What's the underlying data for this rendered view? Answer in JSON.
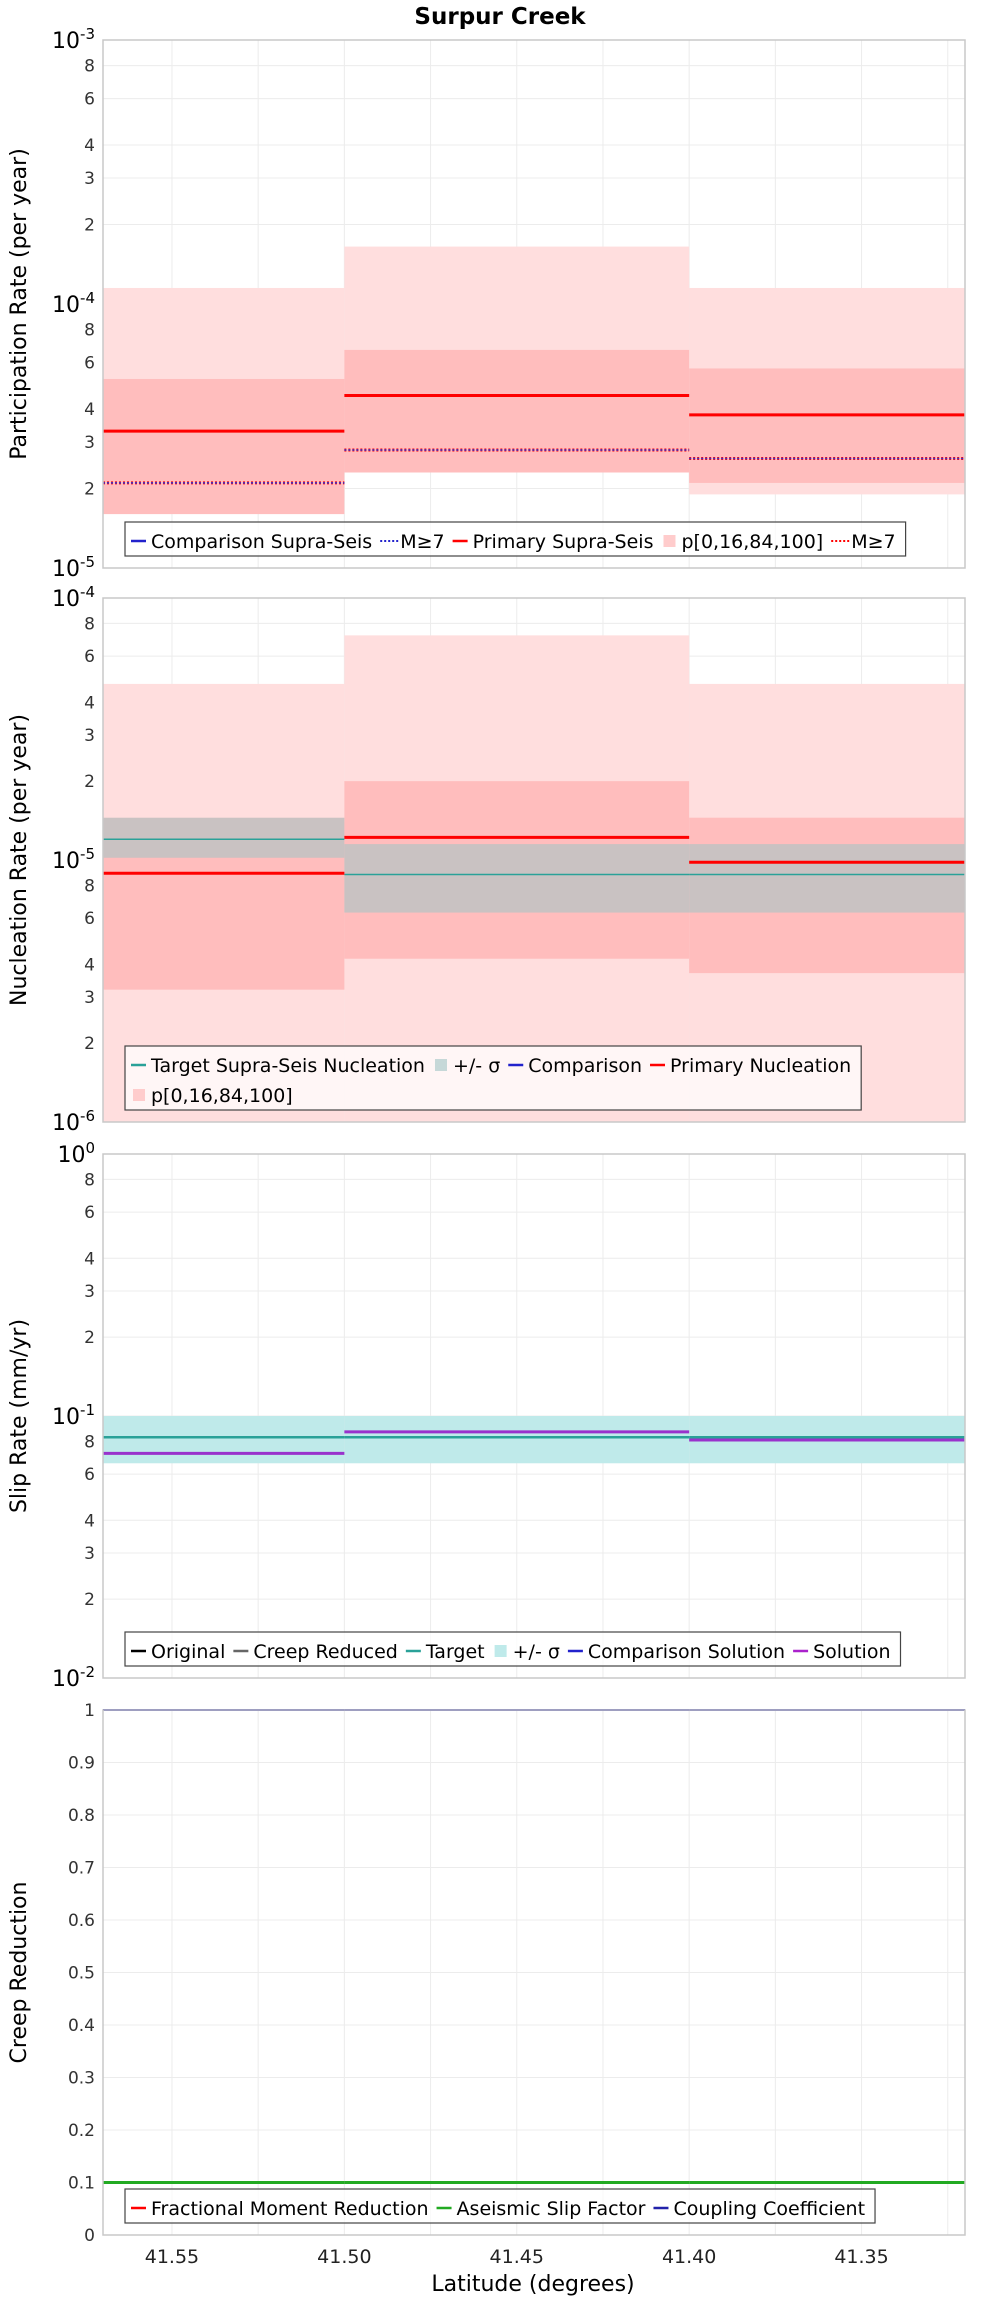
{
  "title": "Surpur Creek",
  "xlabel": "Latitude (degrees)",
  "x_ticks": [
    "41.55",
    "41.50",
    "41.45",
    "41.40",
    "41.35"
  ],
  "chart_data": [
    {
      "type": "line",
      "ylabel": "Participation Rate (per year)",
      "yscale": "log",
      "ylim": [
        1e-05,
        0.001
      ],
      "xlim": [
        41.57,
        41.32
      ],
      "x_bins": [
        [
          41.57,
          41.5
        ],
        [
          41.5,
          41.4
        ],
        [
          41.4,
          41.32
        ]
      ],
      "y_tick_labels": [
        {
          "v": 0.001,
          "base": "10",
          "exp": "-3"
        },
        {
          "v": 0.0008,
          "text": "8"
        },
        {
          "v": 0.0006,
          "text": "6"
        },
        {
          "v": 0.0004,
          "text": "4"
        },
        {
          "v": 0.0003,
          "text": "3"
        },
        {
          "v": 0.0002,
          "text": "2"
        },
        {
          "v": 0.0001,
          "base": "10",
          "exp": "-4"
        },
        {
          "v": 8e-05,
          "text": "8"
        },
        {
          "v": 6e-05,
          "text": "6"
        },
        {
          "v": 4e-05,
          "text": "4"
        },
        {
          "v": 3e-05,
          "text": "3"
        },
        {
          "v": 2e-05,
          "text": "2"
        },
        {
          "v": 1e-05,
          "base": "10",
          "exp": "-5"
        }
      ],
      "bands": [
        {
          "color": "#ffdede",
          "values": [
            [
              1.8e-05,
              0.000115
            ],
            [
              2.3e-05,
              0.000165
            ],
            [
              1.9e-05,
              0.000115
            ]
          ]
        },
        {
          "color": "#ffbdbd",
          "values": [
            [
              1.6e-05,
              5.2e-05
            ],
            [
              2.3e-05,
              6.7e-05
            ],
            [
              2.1e-05,
              5.7e-05
            ]
          ]
        }
      ],
      "series": [
        {
          "name": "Primary Supra-Seis",
          "color": "#ff0000",
          "style": "solid",
          "width": 3,
          "values": [
            3.3e-05,
            4.5e-05,
            3.8e-05
          ]
        },
        {
          "name": "M≥7",
          "color": "#ff0000",
          "style": "dotted",
          "width": 3,
          "values": [
            2.1e-05,
            2.8e-05,
            2.6e-05
          ]
        },
        {
          "name": "M≥7",
          "color": "#3333cc",
          "style": "dotted",
          "width": 1.5,
          "values": [
            2.1e-05,
            2.8e-05,
            2.6e-05
          ]
        }
      ],
      "legend": {
        "placement": "bottom",
        "rows": [
          [
            {
              "label": "Comparison Supra-Seis",
              "color": "#2222cc",
              "kind": "line"
            },
            {
              "label": "M≥7",
              "color": "#2222cc",
              "kind": "dots"
            },
            {
              "label": "Primary Supra-Seis",
              "color": "#ff0000",
              "kind": "line"
            },
            {
              "label": "p[0,16,84,100]",
              "color": "#ffcccc",
              "kind": "swatch"
            },
            {
              "label": "M≥7",
              "color": "#ff0000",
              "kind": "dots"
            }
          ]
        ]
      }
    },
    {
      "type": "line",
      "ylabel": "Nucleation Rate (per year)",
      "yscale": "log",
      "ylim": [
        1e-06,
        0.0001
      ],
      "xlim": [
        41.57,
        41.32
      ],
      "x_bins": [
        [
          41.57,
          41.5
        ],
        [
          41.5,
          41.4
        ],
        [
          41.4,
          41.32
        ]
      ],
      "y_tick_labels": [
        {
          "v": 0.0001,
          "base": "10",
          "exp": "-4"
        },
        {
          "v": 8e-05,
          "text": "8"
        },
        {
          "v": 6e-05,
          "text": "6"
        },
        {
          "v": 4e-05,
          "text": "4"
        },
        {
          "v": 3e-05,
          "text": "3"
        },
        {
          "v": 2e-05,
          "text": "2"
        },
        {
          "v": 1e-05,
          "base": "10",
          "exp": "-5"
        },
        {
          "v": 8e-06,
          "text": "8"
        },
        {
          "v": 6e-06,
          "text": "6"
        },
        {
          "v": 4e-06,
          "text": "4"
        },
        {
          "v": 3e-06,
          "text": "3"
        },
        {
          "v": 2e-06,
          "text": "2"
        },
        {
          "v": 1e-06,
          "base": "10",
          "exp": "-6"
        }
      ],
      "bands": [
        {
          "color": "#ffdede",
          "values": [
            [
              1e-06,
              4.7e-05
            ],
            [
              1e-06,
              7.2e-05
            ],
            [
              1e-06,
              4.7e-05
            ]
          ]
        },
        {
          "color": "#ffbdbd",
          "values": [
            [
              3.2e-06,
              1.4e-05
            ],
            [
              4.2e-06,
              2e-05
            ],
            [
              3.7e-06,
              1.45e-05
            ]
          ]
        },
        {
          "color": "#c9c2c2",
          "values": [
            [
              1.02e-05,
              1.45e-05
            ],
            [
              6.3e-06,
              1.15e-05
            ],
            [
              6.3e-06,
              1.15e-05
            ]
          ]
        }
      ],
      "series": [
        {
          "name": "Target Supra-Seis Nucleation",
          "color": "#2aa198",
          "style": "solid",
          "width": 1.5,
          "values": [
            1.2e-05,
            8.8e-06,
            8.8e-06
          ]
        },
        {
          "name": "Primary Nucleation",
          "color": "#ff0000",
          "style": "solid",
          "width": 3,
          "values": [
            8.9e-06,
            1.22e-05,
            9.8e-06
          ]
        }
      ],
      "legend": {
        "placement": "bottom",
        "rows": [
          [
            {
              "label": "Target Supra-Seis Nucleation",
              "color": "#2aa198",
              "kind": "line"
            },
            {
              "label": "+/- σ",
              "color": "#c6d8d8",
              "kind": "swatch"
            },
            {
              "label": "Comparison",
              "color": "#2222cc",
              "kind": "line"
            },
            {
              "label": "Primary Nucleation",
              "color": "#ff0000",
              "kind": "line"
            }
          ],
          [
            {
              "label": "p[0,16,84,100]",
              "color": "#ffcccc",
              "kind": "swatch"
            }
          ]
        ]
      }
    },
    {
      "type": "line",
      "ylabel": "Slip Rate (mm/yr)",
      "yscale": "log",
      "ylim": [
        0.01,
        1
      ],
      "xlim": [
        41.57,
        41.32
      ],
      "x_bins": [
        [
          41.57,
          41.5
        ],
        [
          41.5,
          41.4
        ],
        [
          41.4,
          41.32
        ]
      ],
      "y_tick_labels": [
        {
          "v": 1,
          "base": "10",
          "exp": "0"
        },
        {
          "v": 0.8,
          "text": "8"
        },
        {
          "v": 0.6,
          "text": "6"
        },
        {
          "v": 0.4,
          "text": "4"
        },
        {
          "v": 0.3,
          "text": "3"
        },
        {
          "v": 0.2,
          "text": "2"
        },
        {
          "v": 0.1,
          "base": "10",
          "exp": "-1"
        },
        {
          "v": 0.08,
          "text": "8"
        },
        {
          "v": 0.06,
          "text": "6"
        },
        {
          "v": 0.04,
          "text": "4"
        },
        {
          "v": 0.03,
          "text": "3"
        },
        {
          "v": 0.02,
          "text": "2"
        },
        {
          "v": 0.01,
          "base": "10",
          "exp": "-2"
        }
      ],
      "bands": [
        {
          "color": "#bfeaea",
          "values": [
            [
              0.066,
              0.1
            ],
            [
              0.066,
              0.1
            ],
            [
              0.066,
              0.1
            ]
          ]
        }
      ],
      "series": [
        {
          "name": "Target",
          "color": "#2aa198",
          "style": "solid",
          "width": 2.5,
          "values": [
            0.083,
            0.083,
            0.083
          ]
        },
        {
          "name": "Solution",
          "color": "#9932cc",
          "style": "solid",
          "width": 3,
          "values": [
            0.072,
            0.087,
            0.081
          ]
        }
      ],
      "legend": {
        "placement": "bottom",
        "rows": [
          [
            {
              "label": "Original",
              "color": "#000000",
              "kind": "line"
            },
            {
              "label": "Creep Reduced",
              "color": "#666666",
              "kind": "line"
            },
            {
              "label": "Target",
              "color": "#2aa198",
              "kind": "line"
            },
            {
              "label": "+/- σ",
              "color": "#bfeaea",
              "kind": "swatch"
            },
            {
              "label": "Comparison Solution",
              "color": "#2222cc",
              "kind": "line"
            },
            {
              "label": "Solution",
              "color": "#aa22cc",
              "kind": "line"
            }
          ]
        ]
      }
    },
    {
      "type": "line",
      "ylabel": "Creep Reduction",
      "yscale": "linear",
      "ylim": [
        0,
        1
      ],
      "xlim": [
        41.57,
        41.32
      ],
      "x_bins": [
        [
          41.57,
          41.5
        ],
        [
          41.5,
          41.4
        ],
        [
          41.4,
          41.32
        ]
      ],
      "y_tick_labels": [
        {
          "v": 1,
          "text": "1"
        },
        {
          "v": 0.9,
          "text": "0.9"
        },
        {
          "v": 0.8,
          "text": "0.8"
        },
        {
          "v": 0.7,
          "text": "0.7"
        },
        {
          "v": 0.6,
          "text": "0.6"
        },
        {
          "v": 0.5,
          "text": "0.5"
        },
        {
          "v": 0.4,
          "text": "0.4"
        },
        {
          "v": 0.3,
          "text": "0.3"
        },
        {
          "v": 0.2,
          "text": "0.2"
        },
        {
          "v": 0.1,
          "text": "0.1"
        },
        {
          "v": 0,
          "text": "0"
        }
      ],
      "bands": [],
      "series": [
        {
          "name": "Coupling Coefficient",
          "color": "#2222aa",
          "style": "solid",
          "width": 2,
          "values": [
            1,
            1,
            1
          ]
        },
        {
          "name": "Aseismic Slip Factor",
          "color": "#22aa22",
          "style": "solid",
          "width": 3,
          "values": [
            0.1,
            0.1,
            0.1
          ]
        }
      ],
      "legend": {
        "placement": "bottom",
        "rows": [
          [
            {
              "label": "Fractional Moment Reduction",
              "color": "#ff0000",
              "kind": "line"
            },
            {
              "label": "Aseismic Slip Factor",
              "color": "#22aa22",
              "kind": "line"
            },
            {
              "label": "Coupling Coefficient",
              "color": "#2222aa",
              "kind": "line"
            }
          ]
        ]
      }
    }
  ]
}
